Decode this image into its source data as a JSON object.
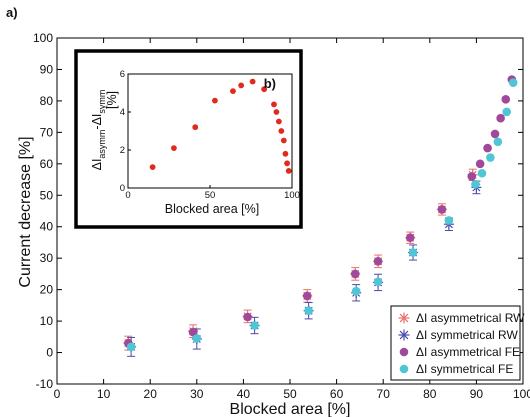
{
  "panel_a_label": "a)",
  "panel_b_label": "b)",
  "chart_data": [
    {
      "type": "scatter",
      "panel": "a)",
      "xlabel": "Blocked area [%]",
      "ylabel": "Current decrease [%]",
      "xlim": [
        0,
        100
      ],
      "ylim": [
        -10,
        100
      ],
      "xticks": [
        "0",
        "10",
        "20",
        "30",
        "40",
        "50",
        "60",
        "70",
        "80",
        "90",
        "100"
      ],
      "yticks": [
        "-10",
        "0",
        "10",
        "20",
        "30",
        "40",
        "50",
        "60",
        "70",
        "80",
        "90",
        "100"
      ],
      "legend_position": "bottom-right",
      "series": [
        {
          "name": "ΔI asymmetrical RW",
          "marker": "asterisk",
          "color": "#e8706a",
          "x": [
            15.3,
            29.2,
            40.9,
            53.7,
            64.0,
            68.9,
            75.8,
            82.6,
            89.2
          ],
          "y": [
            3.0,
            6.8,
            11.5,
            18.0,
            25.0,
            29.0,
            36.5,
            45.5,
            56.5
          ],
          "err": [
            2.2,
            2.0,
            2.0,
            2.0,
            2.0,
            2.0,
            1.8,
            1.8,
            1.8
          ]
        },
        {
          "name": "ΔI symmetrical RW",
          "marker": "asterisk",
          "color": "#4a4aa8",
          "x": [
            15.9,
            30.0,
            42.4,
            54.0,
            64.2,
            68.9,
            76.4,
            84.1,
            90.0
          ],
          "y": [
            1.8,
            4.3,
            8.6,
            13.3,
            19.0,
            22.3,
            31.8,
            40.8,
            52.5
          ],
          "err": [
            3.0,
            3.2,
            2.6,
            2.6,
            2.6,
            2.6,
            2.4,
            2.0,
            2.0
          ]
        },
        {
          "name": "ΔI asymmetrical FE",
          "marker": "circle",
          "color": "#a0489a",
          "x": [
            15.3,
            29.2,
            40.9,
            53.7,
            64.0,
            68.9,
            75.8,
            82.6,
            89.0,
            90.8,
            92.4,
            94.0,
            95.2,
            96.3,
            97.6
          ],
          "y": [
            3.0,
            6.5,
            11.3,
            18.0,
            25.0,
            29.0,
            36.5,
            45.5,
            56.0,
            60.0,
            65.0,
            69.5,
            74.5,
            80.5,
            86.8
          ],
          "err": []
        },
        {
          "name": "ΔI symmetrical FE",
          "marker": "circle",
          "color": "#4fc6d6",
          "x": [
            15.9,
            30.0,
            42.4,
            54.0,
            64.2,
            68.9,
            76.4,
            84.1,
            89.8,
            91.2,
            93.0,
            94.6,
            96.5,
            97.9
          ],
          "y": [
            1.8,
            4.5,
            8.6,
            13.3,
            19.5,
            22.5,
            31.8,
            42.0,
            53.5,
            57.0,
            62.0,
            67.0,
            76.5,
            85.8
          ],
          "err": []
        }
      ]
    },
    {
      "type": "scatter",
      "panel": "b)",
      "xlabel": "Blocked area [%]",
      "ylabel_main": "ΔI",
      "ylabel_sub1": "asymm",
      "ylabel_mid": "-ΔI",
      "ylabel_sub2": "symm",
      "ylabel_unit": "[%]",
      "xlim": [
        0,
        100
      ],
      "ylim": [
        0,
        6
      ],
      "xticks": [
        "0",
        "50",
        "100"
      ],
      "yticks": [
        "0",
        "2",
        "4",
        "6"
      ],
      "series": [
        {
          "color": "#e02a1e",
          "x": [
            15,
            28,
            41,
            53,
            64,
            69,
            76,
            83,
            89,
            90.5,
            92,
            93.5,
            95,
            96,
            97,
            98
          ],
          "y": [
            1.1,
            2.1,
            3.2,
            4.6,
            5.1,
            5.4,
            5.6,
            5.2,
            4.4,
            4.0,
            3.5,
            3.0,
            2.5,
            1.8,
            1.3,
            0.9
          ]
        }
      ]
    }
  ]
}
